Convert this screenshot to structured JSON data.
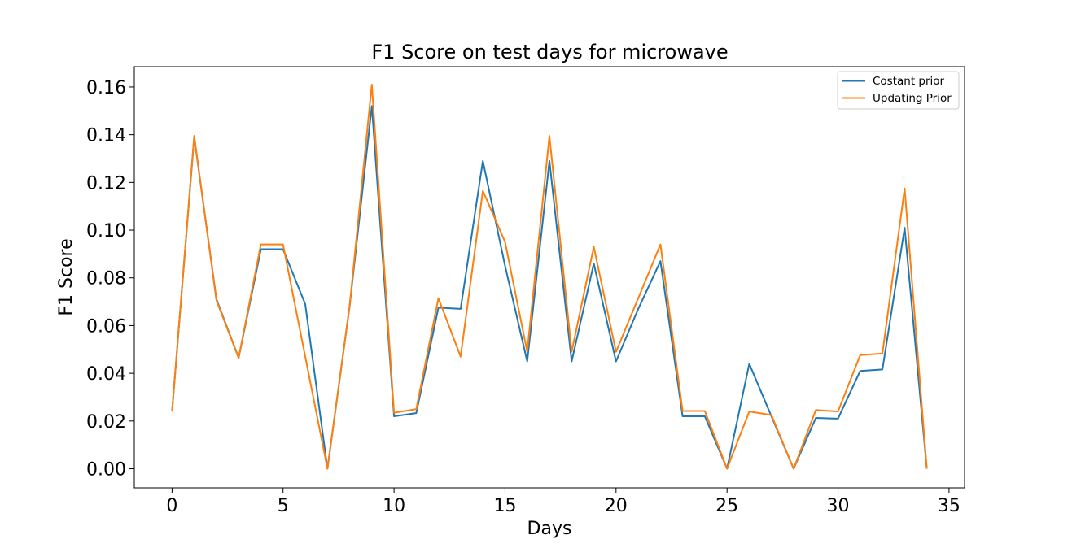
{
  "chart_data": {
    "type": "line",
    "title": "F1 Score on test days for microwave",
    "xlabel": "Days",
    "ylabel": "F1 Score",
    "xlim": [
      -1.7,
      35.7
    ],
    "ylim": [
      -0.008,
      0.1685
    ],
    "xticks": [
      0,
      5,
      10,
      15,
      20,
      25,
      30,
      35
    ],
    "yticks": [
      0.0,
      0.02,
      0.04,
      0.06,
      0.08,
      0.1,
      0.12,
      0.14,
      0.16
    ],
    "ytick_labels": [
      "0.00",
      "0.02",
      "0.04",
      "0.06",
      "0.08",
      "0.10",
      "0.12",
      "0.14",
      "0.16"
    ],
    "grid": false,
    "legend_position": "top-right",
    "x": [
      0,
      1,
      2,
      3,
      4,
      5,
      6,
      7,
      8,
      9,
      10,
      11,
      12,
      13,
      14,
      15,
      16,
      17,
      18,
      19,
      20,
      21,
      22,
      23,
      24,
      25,
      26,
      27,
      28,
      29,
      30,
      31,
      32,
      33,
      34
    ],
    "series": [
      {
        "name": "Costant prior",
        "color": "#1f77b4",
        "values": [
          0.024,
          0.139,
          0.071,
          0.0465,
          0.092,
          0.092,
          0.069,
          0.0,
          0.068,
          0.152,
          0.022,
          0.0233,
          0.0675,
          0.067,
          0.129,
          0.085,
          0.045,
          0.129,
          0.045,
          0.086,
          0.045,
          0.067,
          0.087,
          0.022,
          0.022,
          0.0,
          0.044,
          0.022,
          0.0,
          0.0213,
          0.021,
          0.041,
          0.0416,
          0.101,
          0.0
        ]
      },
      {
        "name": "Updating Prior",
        "color": "#ff7f0e",
        "values": [
          0.024,
          0.1395,
          0.0705,
          0.0465,
          0.094,
          0.094,
          0.047,
          0.0,
          0.068,
          0.161,
          0.0235,
          0.025,
          0.0715,
          0.047,
          0.1165,
          0.095,
          0.049,
          0.1395,
          0.049,
          0.093,
          0.049,
          0.0715,
          0.094,
          0.0242,
          0.0242,
          0.0,
          0.024,
          0.0225,
          0.0,
          0.0246,
          0.024,
          0.0476,
          0.0483,
          0.1175,
          0.0
        ]
      }
    ]
  }
}
